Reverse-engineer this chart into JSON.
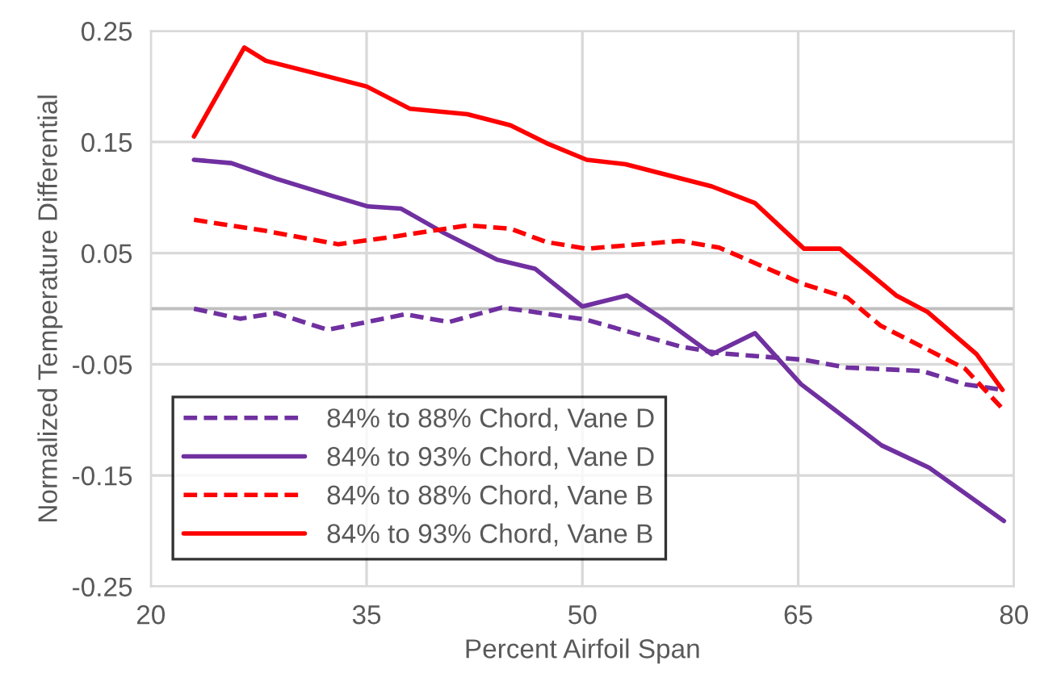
{
  "chart_data": {
    "type": "line",
    "xlabel": "Percent Airfoil Span",
    "ylabel": "Normalized Temperature Differential",
    "xlim": [
      20,
      80
    ],
    "xticks": [
      20,
      35,
      50,
      65,
      80
    ],
    "ylim": [
      -0.25,
      0.25
    ],
    "yticks": [
      -0.25,
      -0.15,
      -0.05,
      0.05,
      0.15,
      0.25
    ],
    "grid": true,
    "legend": "bottom left",
    "ref_lines": [
      {
        "axis": "y",
        "value": 0,
        "color": "#bfbfbf"
      }
    ],
    "series": [
      {
        "name": "84% to 88% Chord, Vane D",
        "color": "#7030a0",
        "line_style": "dashed",
        "x": [
          23,
          26.2,
          28.7,
          32.3,
          37.7,
          40.7,
          44.4,
          46.7,
          50.3,
          56.8,
          59.5,
          65.4,
          68.4,
          73.6,
          76.6,
          79.2
        ],
        "values": [
          0.0,
          -0.009,
          -0.004,
          -0.019,
          -0.005,
          -0.012,
          0.001,
          -0.003,
          -0.01,
          -0.034,
          -0.04,
          -0.046,
          -0.053,
          -0.056,
          -0.068,
          -0.073
        ]
      },
      {
        "name": "84% to 93% Chord, Vane D",
        "color": "#7030a0",
        "line_style": "solid",
        "x": [
          23,
          25.6,
          28.7,
          32.5,
          35.1,
          37.4,
          40.4,
          44.1,
          46.7,
          50.0,
          53.1,
          55.7,
          59,
          62,
          65.2,
          70.8,
          74.1,
          79.3
        ],
        "values": [
          0.134,
          0.131,
          0.117,
          0.102,
          0.092,
          0.09,
          0.068,
          0.044,
          0.036,
          0.002,
          0.012,
          -0.01,
          -0.041,
          -0.022,
          -0.068,
          -0.123,
          -0.143,
          -0.191
        ]
      },
      {
        "name": "84% to 88% Chord, Vane B",
        "color": "#ff0000",
        "line_style": "dashed",
        "x": [
          23,
          28,
          33,
          37,
          42,
          45,
          47.5,
          50.3,
          56.8,
          59.5,
          65.4,
          68.4,
          70.7,
          76.6,
          79.2
        ],
        "values": [
          0.08,
          0.07,
          0.058,
          0.065,
          0.075,
          0.072,
          0.06,
          0.054,
          0.061,
          0.055,
          0.022,
          0.01,
          -0.015,
          -0.054,
          -0.09
        ]
      },
      {
        "name": "84% to 93% Chord, Vane B",
        "color": "#ff0000",
        "line_style": "solid",
        "x": [
          23,
          26.5,
          28,
          32,
          35,
          38,
          42,
          45,
          47.5,
          50.3,
          53,
          56,
          59,
          62,
          65.4,
          67.9,
          71.8,
          74,
          77.4,
          79.2
        ],
        "values": [
          0.155,
          0.235,
          0.223,
          0.21,
          0.2,
          0.18,
          0.175,
          0.165,
          0.149,
          0.134,
          0.13,
          0.12,
          0.11,
          0.095,
          0.054,
          0.054,
          0.012,
          -0.003,
          -0.041,
          -0.073
        ]
      }
    ]
  }
}
